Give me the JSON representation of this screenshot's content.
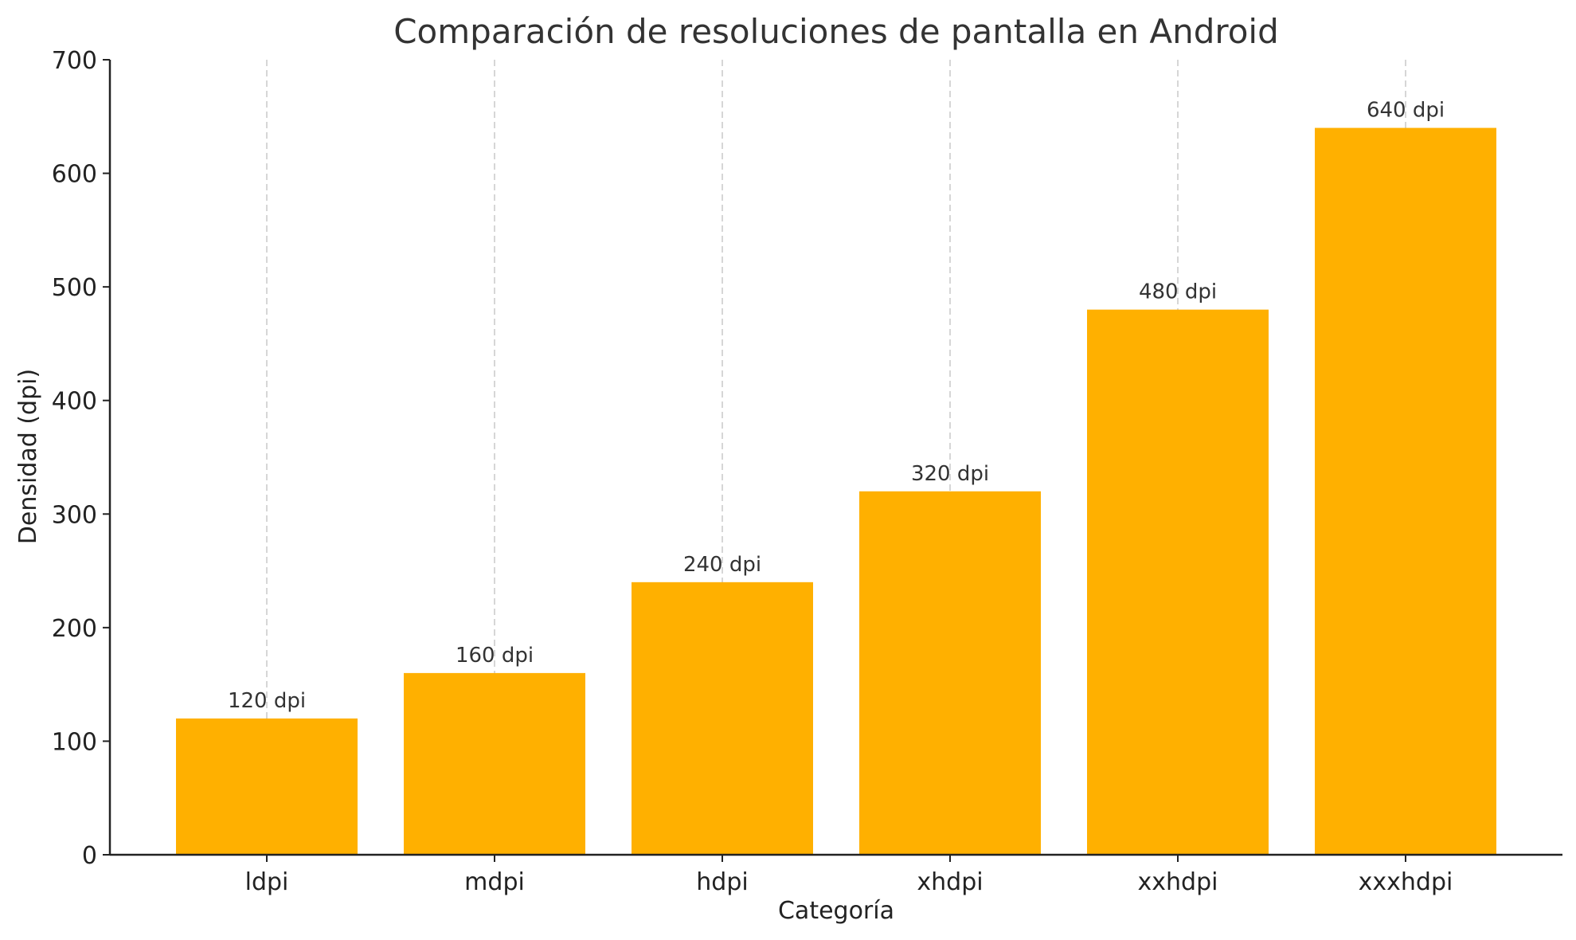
{
  "chart_data": {
    "type": "bar",
    "title": "Comparación de resoluciones de pantalla en Android",
    "xlabel": "Categoría",
    "ylabel": "Densidad (dpi)",
    "categories": [
      "ldpi",
      "mdpi",
      "hdpi",
      "xhdpi",
      "xxhdpi",
      "xxxhdpi"
    ],
    "values": [
      120,
      160,
      240,
      320,
      480,
      640
    ],
    "data_labels": [
      "120 dpi",
      "160 dpi",
      "240 dpi",
      "320 dpi",
      "480 dpi",
      "640 dpi"
    ],
    "ylim": [
      0,
      700
    ],
    "yticks": [
      0,
      100,
      200,
      300,
      400,
      500,
      600,
      700
    ],
    "grid": "vertical dashed",
    "bar_color": "#FFB000"
  }
}
